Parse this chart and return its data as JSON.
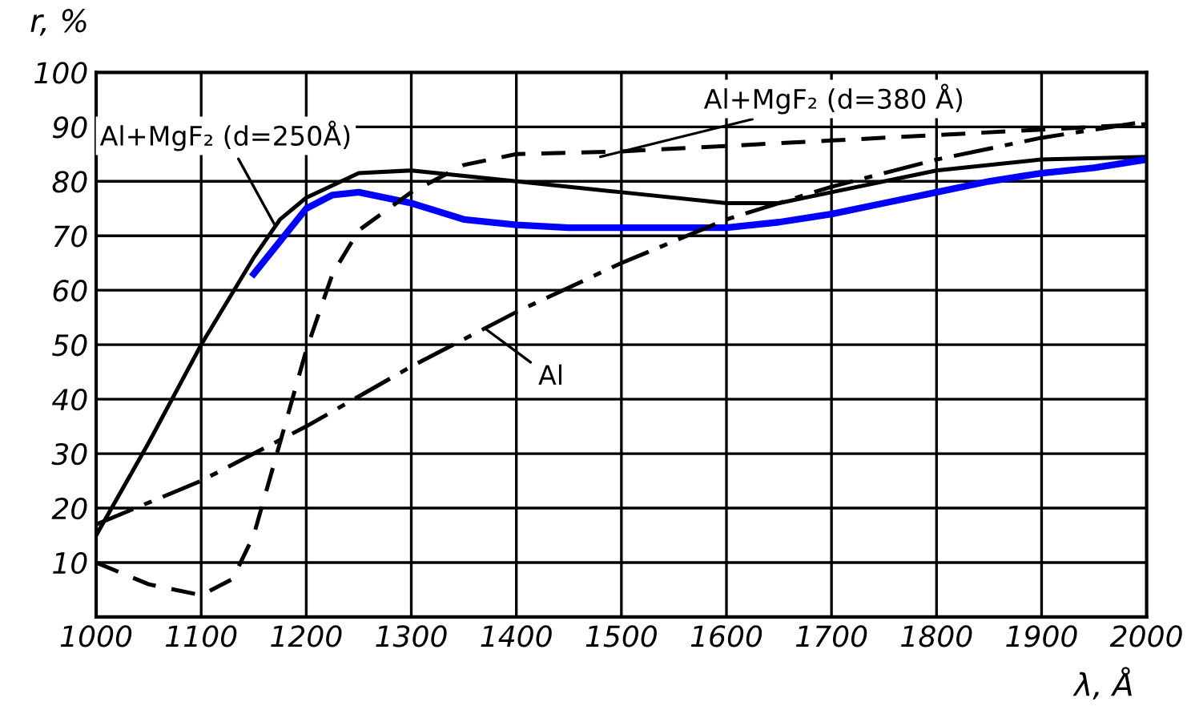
{
  "chart_data": {
    "type": "line",
    "xlabel": "λ, Å",
    "ylabel": "r, %",
    "xlim": [
      1000,
      2000
    ],
    "xticks": [
      1000,
      1100,
      1200,
      1300,
      1400,
      1500,
      1600,
      1700,
      1800,
      1900,
      2000
    ],
    "ylim": [
      0,
      100
    ],
    "yticks": [
      10,
      20,
      30,
      40,
      50,
      60,
      70,
      80,
      90,
      100
    ],
    "grid": true,
    "marker": "none",
    "series": [
      {
        "color": "#000000",
        "line_style": "solid",
        "x": [
          1000,
          1050,
          1100,
          1150,
          1175,
          1200,
          1250,
          1300,
          1350,
          1400,
          1500,
          1600,
          1650,
          1700,
          1800,
          1900,
          2000
        ],
        "values": [
          15,
          32,
          50,
          66,
          73,
          77,
          81.5,
          82,
          81,
          80,
          78,
          76,
          76,
          78,
          82,
          84,
          84.5
        ]
      },
      {
        "color": "#0000ff",
        "line_style": "solid",
        "x": [
          1150,
          1175,
          1200,
          1225,
          1250,
          1300,
          1350,
          1400,
          1450,
          1500,
          1550,
          1600,
          1650,
          1700,
          1750,
          1800,
          1850,
          1900,
          1950,
          2000
        ],
        "values": [
          63,
          69,
          75,
          77.5,
          78,
          76,
          73,
          72,
          71.5,
          71.5,
          71.5,
          71.5,
          72.5,
          74,
          76,
          78,
          80,
          81.5,
          82.5,
          84
        ]
      },
      {
        "color": "#000000",
        "line_style": "dashed",
        "x": [
          1000,
          1050,
          1100,
          1130,
          1150,
          1175,
          1200,
          1225,
          1250,
          1300,
          1350,
          1400,
          1500,
          1600,
          1700,
          1800,
          1900,
          2000
        ],
        "values": [
          10,
          6,
          4,
          7,
          15,
          32,
          49,
          63,
          71,
          78,
          83,
          85,
          85.5,
          86.5,
          87.5,
          88.5,
          89.5,
          90.5
        ]
      },
      {
        "color": "#000000",
        "line_style": "dashdot",
        "x": [
          1000,
          1100,
          1200,
          1300,
          1400,
          1500,
          1600,
          1700,
          1800,
          1900,
          2000
        ],
        "values": [
          17,
          25,
          35,
          46,
          56,
          65,
          73,
          79,
          84,
          88,
          91
        ]
      }
    ],
    "annotations": [
      {
        "text": "Al+MgF₂ (d=250Å)",
        "x": 1170,
        "y": 72
      },
      {
        "text": "Al+MgF₂ (d=380 Å)",
        "x": 1480,
        "y": 84.5
      },
      {
        "text": "Al",
        "x": 1370,
        "y": 53
      }
    ]
  }
}
